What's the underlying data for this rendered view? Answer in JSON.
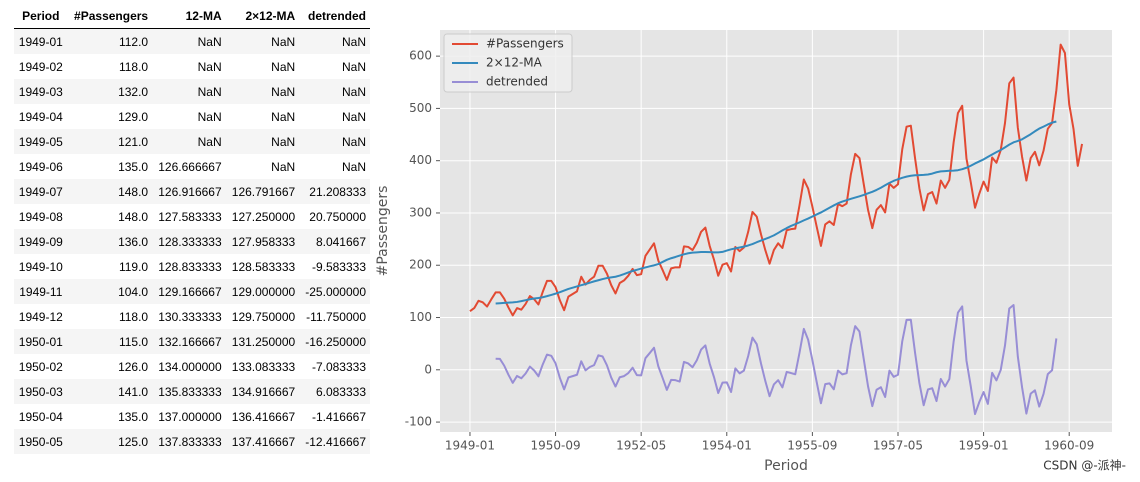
{
  "table": {
    "columns": [
      "Period",
      "#Passengers",
      "12-MA",
      "2×12-MA",
      "detrended"
    ],
    "rows": [
      [
        "1949-01",
        "112.0",
        "NaN",
        "NaN",
        "NaN"
      ],
      [
        "1949-02",
        "118.0",
        "NaN",
        "NaN",
        "NaN"
      ],
      [
        "1949-03",
        "132.0",
        "NaN",
        "NaN",
        "NaN"
      ],
      [
        "1949-04",
        "129.0",
        "NaN",
        "NaN",
        "NaN"
      ],
      [
        "1949-05",
        "121.0",
        "NaN",
        "NaN",
        "NaN"
      ],
      [
        "1949-06",
        "135.0",
        "126.666667",
        "NaN",
        "NaN"
      ],
      [
        "1949-07",
        "148.0",
        "126.916667",
        "126.791667",
        "21.208333"
      ],
      [
        "1949-08",
        "148.0",
        "127.583333",
        "127.250000",
        "20.750000"
      ],
      [
        "1949-09",
        "136.0",
        "128.333333",
        "127.958333",
        "8.041667"
      ],
      [
        "1949-10",
        "119.0",
        "128.833333",
        "128.583333",
        "-9.583333"
      ],
      [
        "1949-11",
        "104.0",
        "129.166667",
        "129.000000",
        "-25.000000"
      ],
      [
        "1949-12",
        "118.0",
        "130.333333",
        "129.750000",
        "-11.750000"
      ],
      [
        "1950-01",
        "115.0",
        "132.166667",
        "131.250000",
        "-16.250000"
      ],
      [
        "1950-02",
        "126.0",
        "134.000000",
        "133.083333",
        "-7.083333"
      ],
      [
        "1950-03",
        "141.0",
        "135.833333",
        "134.916667",
        "6.083333"
      ],
      [
        "1950-04",
        "135.0",
        "137.000000",
        "136.416667",
        "-1.416667"
      ],
      [
        "1950-05",
        "125.0",
        "137.833333",
        "137.416667",
        "-12.416667"
      ]
    ]
  },
  "chart_data": {
    "type": "line",
    "xlabel": "Period",
    "ylabel": "#Passengers",
    "grid": true,
    "legend": "upper left",
    "x": [
      "1949-01",
      "1949-02",
      "1949-03",
      "1949-04",
      "1949-05",
      "1949-06",
      "1949-07",
      "1949-08",
      "1949-09",
      "1949-10",
      "1949-11",
      "1949-12",
      "1950-01",
      "1950-02",
      "1950-03",
      "1950-04",
      "1950-05",
      "1950-06",
      "1950-07",
      "1950-08",
      "1950-09",
      "1950-10",
      "1950-11",
      "1950-12",
      "1951-01",
      "1951-02",
      "1951-03",
      "1951-04",
      "1951-05",
      "1951-06",
      "1951-07",
      "1951-08",
      "1951-09",
      "1951-10",
      "1951-11",
      "1951-12",
      "1952-01",
      "1952-02",
      "1952-03",
      "1952-04",
      "1952-05",
      "1952-06",
      "1952-07",
      "1952-08",
      "1952-09",
      "1952-10",
      "1952-11",
      "1952-12",
      "1953-01",
      "1953-02",
      "1953-03",
      "1953-04",
      "1953-05",
      "1953-06",
      "1953-07",
      "1953-08",
      "1953-09",
      "1953-10",
      "1953-11",
      "1953-12",
      "1954-01",
      "1954-02",
      "1954-03",
      "1954-04",
      "1954-05",
      "1954-06",
      "1954-07",
      "1954-08",
      "1954-09",
      "1954-10",
      "1954-11",
      "1954-12",
      "1955-01",
      "1955-02",
      "1955-03",
      "1955-04",
      "1955-05",
      "1955-06",
      "1955-07",
      "1955-08",
      "1955-09",
      "1955-10",
      "1955-11",
      "1955-12",
      "1956-01",
      "1956-02",
      "1956-03",
      "1956-04",
      "1956-05",
      "1956-06",
      "1956-07",
      "1956-08",
      "1956-09",
      "1956-10",
      "1956-11",
      "1956-12",
      "1957-01",
      "1957-02",
      "1957-03",
      "1957-04",
      "1957-05",
      "1957-06",
      "1957-07",
      "1957-08",
      "1957-09",
      "1957-10",
      "1957-11",
      "1957-12",
      "1958-01",
      "1958-02",
      "1958-03",
      "1958-04",
      "1958-05",
      "1958-06",
      "1958-07",
      "1958-08",
      "1958-09",
      "1958-10",
      "1958-11",
      "1958-12",
      "1959-01",
      "1959-02",
      "1959-03",
      "1959-04",
      "1959-05",
      "1959-06",
      "1959-07",
      "1959-08",
      "1959-09",
      "1959-10",
      "1959-11",
      "1959-12",
      "1960-01",
      "1960-02",
      "1960-03",
      "1960-04",
      "1960-05",
      "1960-06",
      "1960-07",
      "1960-08",
      "1960-09",
      "1960-10",
      "1960-11",
      "1960-12"
    ],
    "xlim": [
      "1948-06",
      "1961-07"
    ],
    "xticks": [
      "1949-01",
      "1950-09",
      "1952-05",
      "1954-01",
      "1955-09",
      "1957-05",
      "1959-01",
      "1960-09"
    ],
    "ylim": [
      -119,
      650
    ],
    "yticks": [
      -100,
      0,
      100,
      200,
      300,
      400,
      500,
      600
    ],
    "series": [
      {
        "name": "#Passengers",
        "color": "#E24A33",
        "values": [
          112,
          118,
          132,
          129,
          121,
          135,
          148,
          148,
          136,
          119,
          104,
          118,
          115,
          126,
          141,
          135,
          125,
          149,
          170,
          170,
          158,
          133,
          114,
          140,
          145,
          150,
          178,
          163,
          172,
          178,
          199,
          199,
          184,
          162,
          146,
          166,
          171,
          180,
          193,
          181,
          183,
          218,
          230,
          242,
          209,
          191,
          172,
          194,
          196,
          196,
          236,
          235,
          229,
          243,
          264,
          272,
          237,
          211,
          180,
          201,
          204,
          188,
          235,
          227,
          234,
          264,
          302,
          293,
          259,
          229,
          203,
          229,
          242,
          233,
          267,
          269,
          270,
          315,
          364,
          347,
          312,
          274,
          237,
          278,
          284,
          277,
          317,
          313,
          318,
          374,
          413,
          405,
          355,
          306,
          271,
          306,
          315,
          301,
          356,
          348,
          355,
          422,
          465,
          467,
          404,
          347,
          305,
          336,
          340,
          318,
          362,
          348,
          363,
          435,
          491,
          505,
          404,
          359,
          310,
          337,
          360,
          342,
          406,
          396,
          420,
          472,
          548,
          559,
          463,
          407,
          362,
          405,
          417,
          391,
          419,
          461,
          472,
          535,
          622,
          606,
          508,
          461,
          390,
          432
        ]
      },
      {
        "name": "2×12-MA",
        "color": "#348ABD",
        "values": [
          null,
          null,
          null,
          null,
          null,
          null,
          126.8,
          127.3,
          128.0,
          128.6,
          129.0,
          129.8,
          131.3,
          133.1,
          134.9,
          136.4,
          137.4,
          138.8,
          140.9,
          143.2,
          145.7,
          148.4,
          151.5,
          154.7,
          157.1,
          159.5,
          161.8,
          164.1,
          166.7,
          169.1,
          171.3,
          173.6,
          175.5,
          176.8,
          178.0,
          180.2,
          183.1,
          186.2,
          189.0,
          191.3,
          193.6,
          195.8,
          198.0,
          199.8,
          202.2,
          206.3,
          210.4,
          213.4,
          215.8,
          218.5,
          220.9,
          222.9,
          224.1,
          224.7,
          225.3,
          225.3,
          225.0,
          224.6,
          224.5,
          225.5,
          228.0,
          230.5,
          232.3,
          233.9,
          235.6,
          237.8,
          240.5,
          244.0,
          247.2,
          250.3,
          253.5,
          257.1,
          261.8,
          266.7,
          271.1,
          275.2,
          278.5,
          282.0,
          285.8,
          289.3,
          293.3,
          297.2,
          301.0,
          305.5,
          310.0,
          314.4,
          318.6,
          321.8,
          324.5,
          327.1,
          329.5,
          331.8,
          334.5,
          337.5,
          340.5,
          344.1,
          348.3,
          353.0,
          357.6,
          361.4,
          364.5,
          367.2,
          369.5,
          371.2,
          372.2,
          372.4,
          372.8,
          373.6,
          375.3,
          377.9,
          379.5,
          380.0,
          380.7,
          381.0,
          381.8,
          383.7,
          386.5,
          390.3,
          394.7,
          398.6,
          402.5,
          407.2,
          411.9,
          416.3,
          420.5,
          425.5,
          430.7,
          435.1,
          437.7,
          441.0,
          445.8,
          450.6,
          456.3,
          461.4,
          465.2,
          469.3,
          472.8,
          475.0,
          null,
          null,
          null,
          null,
          null,
          null
        ]
      },
      {
        "name": "detrended",
        "color": "#988ED5",
        "values": [
          null,
          null,
          null,
          null,
          null,
          null,
          21.2,
          20.8,
          8.0,
          -9.6,
          -25.0,
          -11.8,
          -16.3,
          -7.1,
          6.1,
          -1.4,
          -12.4,
          10.2,
          29.1,
          26.8,
          12.3,
          -15.4,
          -37.5,
          -14.7,
          -12.1,
          -9.5,
          16.2,
          -1.1,
          5.3,
          8.9,
          27.7,
          25.4,
          8.5,
          -14.8,
          -32.0,
          -14.2,
          -12.1,
          -6.2,
          4.0,
          -10.3,
          -10.6,
          22.2,
          32.0,
          42.2,
          6.8,
          -15.3,
          -38.4,
          -19.4,
          -19.8,
          -22.5,
          15.1,
          12.1,
          4.9,
          18.3,
          38.7,
          46.7,
          12.0,
          -13.6,
          -44.5,
          -24.5,
          -24.0,
          -42.5,
          2.7,
          -6.9,
          -1.6,
          26.2,
          61.5,
          49.0,
          11.8,
          -21.3,
          -50.5,
          -28.1,
          -19.8,
          -33.7,
          -4.1,
          -6.2,
          -8.5,
          33.0,
          78.2,
          57.7,
          18.7,
          -23.2,
          -64.0,
          -27.5,
          -26.0,
          -37.4,
          -1.6,
          -8.8,
          -6.5,
          46.9,
          83.5,
          73.2,
          20.5,
          -31.5,
          -69.5,
          -38.1,
          -33.3,
          -52.0,
          -1.6,
          -13.4,
          -9.5,
          54.8,
          95.5,
          95.8,
          31.8,
          -25.4,
          -67.8,
          -37.6,
          -35.3,
          -59.9,
          -17.5,
          -32.0,
          -17.7,
          54.0,
          109.2,
          121.3,
          17.5,
          -31.3,
          -84.7,
          -61.6,
          -42.5,
          -65.2,
          -5.9,
          -20.3,
          -0.5,
          46.5,
          117.3,
          123.9,
          25.3,
          -34.0,
          -83.8,
          -45.6,
          -39.3,
          -70.4,
          -46.2,
          -8.3,
          -0.8,
          60.0,
          null,
          null,
          null,
          null,
          null,
          null
        ]
      }
    ]
  },
  "watermark": "CSDN @-派神-"
}
